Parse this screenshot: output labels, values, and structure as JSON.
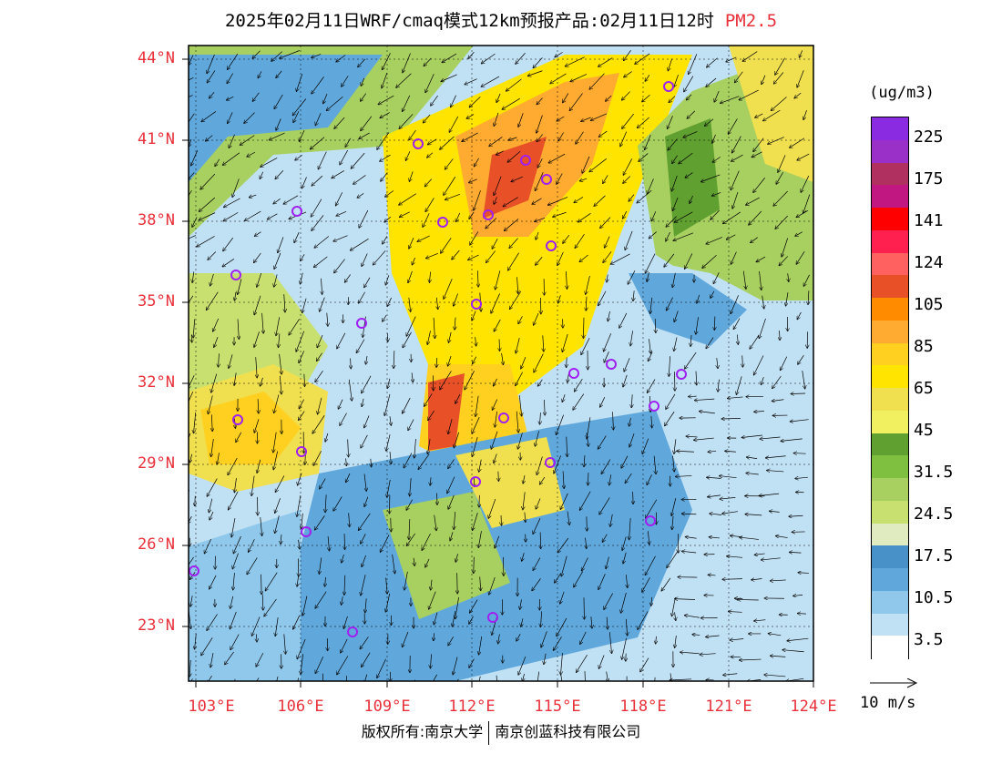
{
  "header": {
    "title": "2025年02月11日WRF/cmaq模式12km预报产品:02月11日12时",
    "pollutant": "PM2.5"
  },
  "map": {
    "lat_labels": [
      "44°N",
      "41°N",
      "38°N",
      "35°N",
      "32°N",
      "29°N",
      "26°N",
      "23°N"
    ],
    "lon_labels": [
      "103°E",
      "106°E",
      "109°E",
      "112°E",
      "115°E",
      "118°E",
      "121°E",
      "124°E"
    ],
    "station_marker_color": "#a020f0"
  },
  "legend": {
    "unit": "(ug/m3)",
    "labels": [
      "225",
      "175",
      "141",
      "124",
      "105",
      "85",
      "65",
      "45",
      "31.5",
      "24.5",
      "17.5",
      "10.5",
      "3.5"
    ],
    "colors": [
      "#8a2be2",
      "#9b30c8",
      "#b03060",
      "#c01880",
      "#ff0000",
      "#ff2050",
      "#ff6060",
      "#e85028",
      "#ff8c00",
      "#ffaa30",
      "#ffd020",
      "#ffe400",
      "#f0e050",
      "#f0f060",
      "#60a030",
      "#80c040",
      "#a8d060",
      "#c8e070",
      "#e0ecc0",
      "#4890c8",
      "#60a8dc",
      "#90c8ec",
      "#c0e0f4",
      "#ffffff"
    ]
  },
  "wind": {
    "label": "10 m/s"
  },
  "footer": {
    "left": "版权所有:南京大学",
    "right": "南京创蓝科技有限公司"
  }
}
